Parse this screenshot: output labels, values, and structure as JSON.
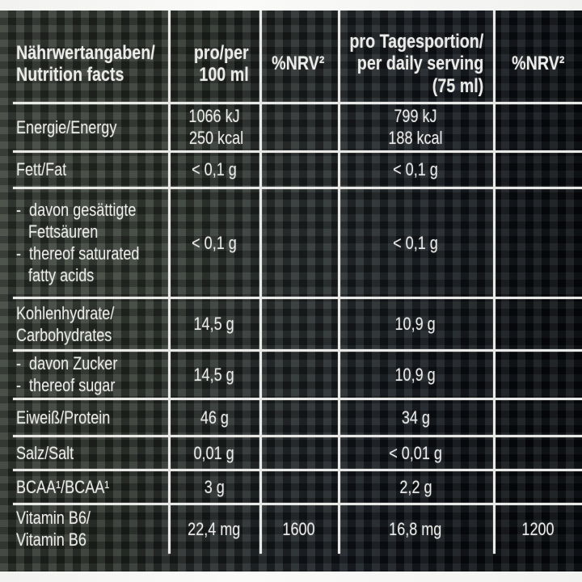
{
  "colors": {
    "table_line": "#e8e8e6",
    "text": "#ebebe9",
    "panel_left": "#3a3f39",
    "panel_right": "#080b11",
    "margin_strip": "#f5f5f4"
  },
  "table": {
    "header": {
      "label": "Nährwertangaben/\nNutrition facts",
      "per100": "pro/per\n100 ml",
      "nrv100": "%NRV²",
      "daily": "pro Tagesportion/\nper daily serving\n(75 ml)",
      "nrv_daily": "%NRV²"
    },
    "rows": [
      {
        "label": "Energie/Energy",
        "per100": "1066 kJ\n 250 kcal",
        "nrv100": "",
        "daily": "799 kJ\n188 kcal",
        "nrv_daily": ""
      },
      {
        "label": "Fett/Fat",
        "per100": "< 0,1 g",
        "nrv100": "",
        "daily": "< 0,1 g",
        "nrv_daily": ""
      },
      {
        "label": "-  davon gesättigte\n   Fettsäuren\n-  thereof saturated\n   fatty acids",
        "per100": "< 0,1 g",
        "nrv100": "",
        "daily": "< 0,1 g",
        "nrv_daily": ""
      },
      {
        "label": "Kohlenhydrate/\nCarbohydrates",
        "per100": "14,5 g",
        "nrv100": "",
        "daily": "10,9 g",
        "nrv_daily": ""
      },
      {
        "label": "-  davon Zucker\n-  thereof sugar",
        "per100": "14,5 g",
        "nrv100": "",
        "daily": "10,9 g",
        "nrv_daily": ""
      },
      {
        "label": "Eiweiß/Protein",
        "per100": "46 g",
        "nrv100": "",
        "daily": "34 g",
        "nrv_daily": ""
      },
      {
        "label": "Salz/Salt",
        "per100": "0,01 g",
        "nrv100": "",
        "daily": "< 0,01 g",
        "nrv_daily": ""
      },
      {
        "label": "BCAA¹/BCAA¹",
        "per100": "3 g",
        "nrv100": "",
        "daily": "2,2 g",
        "nrv_daily": ""
      },
      {
        "label": "Vitamin B6/\nVitamin B6",
        "per100": "22,4 mg",
        "nrv100": "1600",
        "daily": "16,8 mg",
        "nrv_daily": "1200"
      }
    ]
  }
}
